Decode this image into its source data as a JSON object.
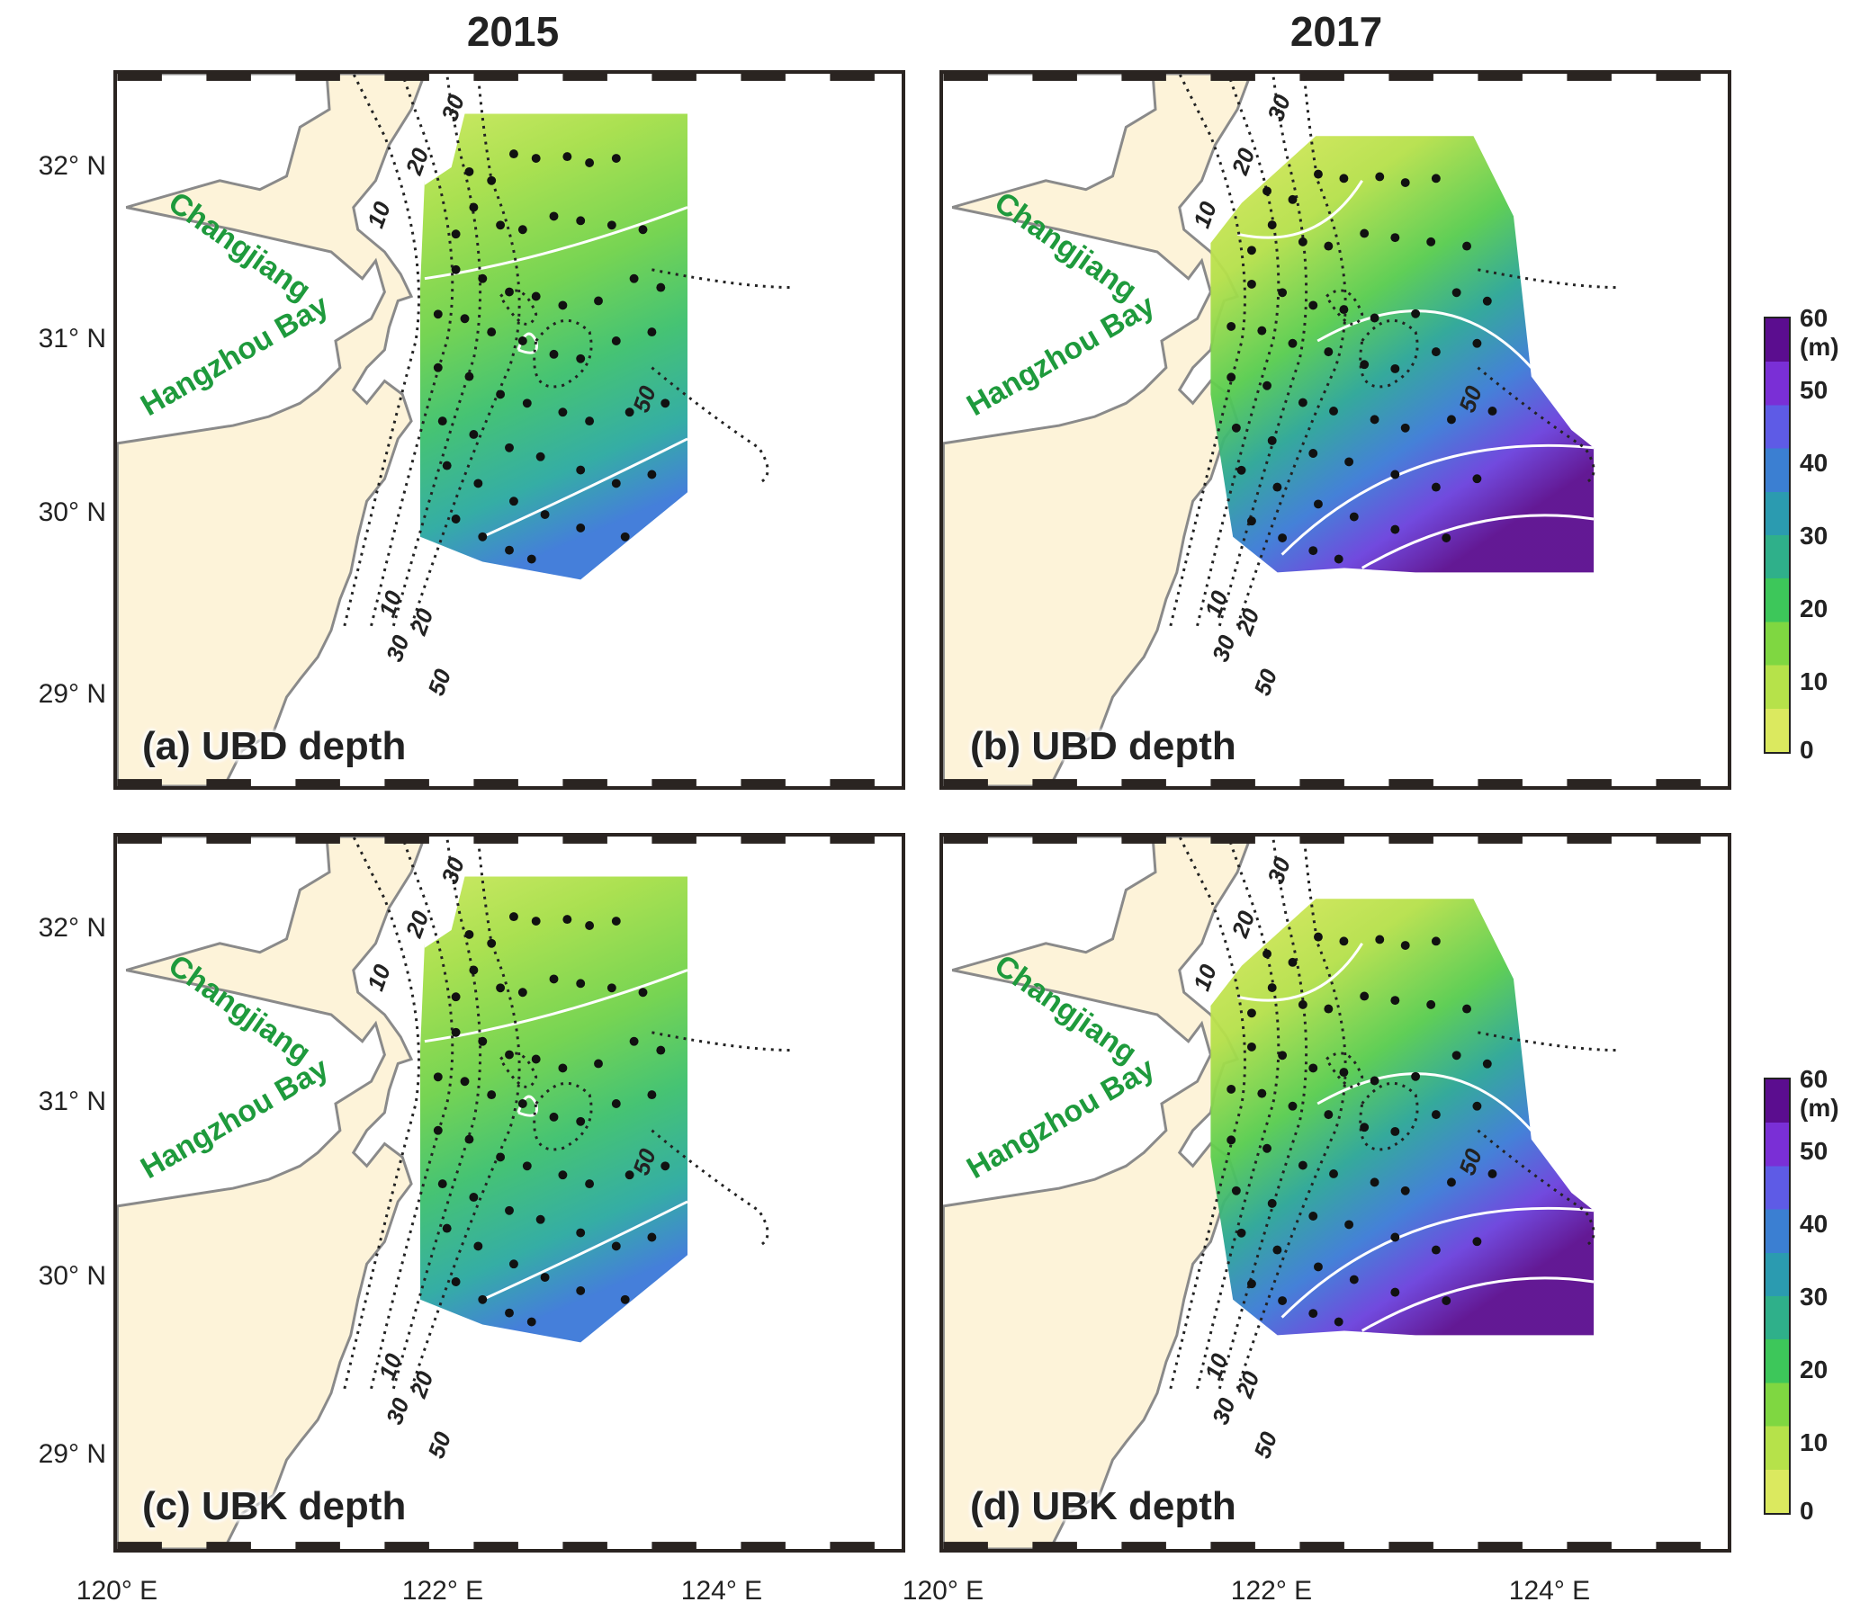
{
  "columns": [
    "2015",
    "2017"
  ],
  "lat_labels": [
    "32° N",
    "31° N",
    "30° N",
    "29° N"
  ],
  "lon_labels": [
    "120° E",
    "122° E",
    "124° E",
    "120° E",
    "122° E",
    "124° E"
  ],
  "panels": [
    {
      "letter": "(a)",
      "label": "UBD depth"
    },
    {
      "letter": "(b)",
      "label": "UBD depth"
    },
    {
      "letter": "(c)",
      "label": "UBK depth"
    },
    {
      "letter": "(d)",
      "label": "UBK depth"
    }
  ],
  "places": [
    "Changjiang",
    "Hangzhou Bay"
  ],
  "isobaths": [
    "10",
    "20",
    "30",
    "50"
  ],
  "colorbar": {
    "unit": "(m)",
    "ticks": [
      "60",
      "50",
      "40",
      "30",
      "20",
      "10",
      "0"
    ],
    "colors": [
      "#dbe95f",
      "#b6e24a",
      "#7fd741",
      "#3dc75a",
      "#2fb08a",
      "#2b9bb0",
      "#3b7fd2",
      "#5e5be6",
      "#7a2fd6",
      "#5b0d8f"
    ]
  },
  "colors": {
    "land": "#fdf3d9",
    "coast": "#8a8a8a",
    "frame": "#2a2421",
    "label_green": "#1e9a3c"
  }
}
